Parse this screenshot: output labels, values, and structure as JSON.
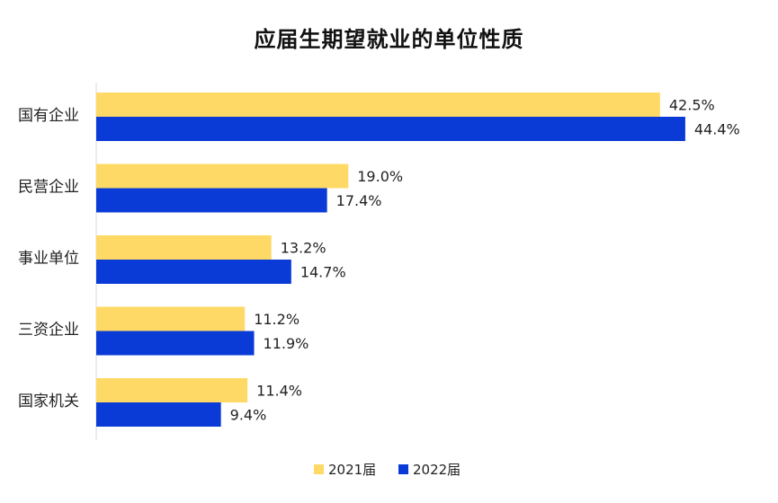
{
  "chart_data": {
    "type": "bar",
    "orientation": "horizontal",
    "title": "应届生期望就业的单位性质",
    "categories": [
      "国有企业",
      "民营企业",
      "事业单位",
      "三资企业",
      "国家机关"
    ],
    "series": [
      {
        "name": "2021届",
        "values": [
          42.5,
          19.0,
          13.2,
          11.2,
          11.4
        ],
        "labels": [
          "42.5%",
          "19.0%",
          "13.2%",
          "11.2%",
          "11.4%"
        ],
        "color": "#FFD966"
      },
      {
        "name": "2022届",
        "values": [
          44.4,
          17.4,
          14.7,
          11.9,
          9.4
        ],
        "labels": [
          "44.4%",
          "17.4%",
          "14.7%",
          "11.9%",
          "9.4%"
        ],
        "color": "#0A3BD6"
      }
    ],
    "value_unit": "%",
    "grid": false,
    "legend_position": "bottom"
  }
}
